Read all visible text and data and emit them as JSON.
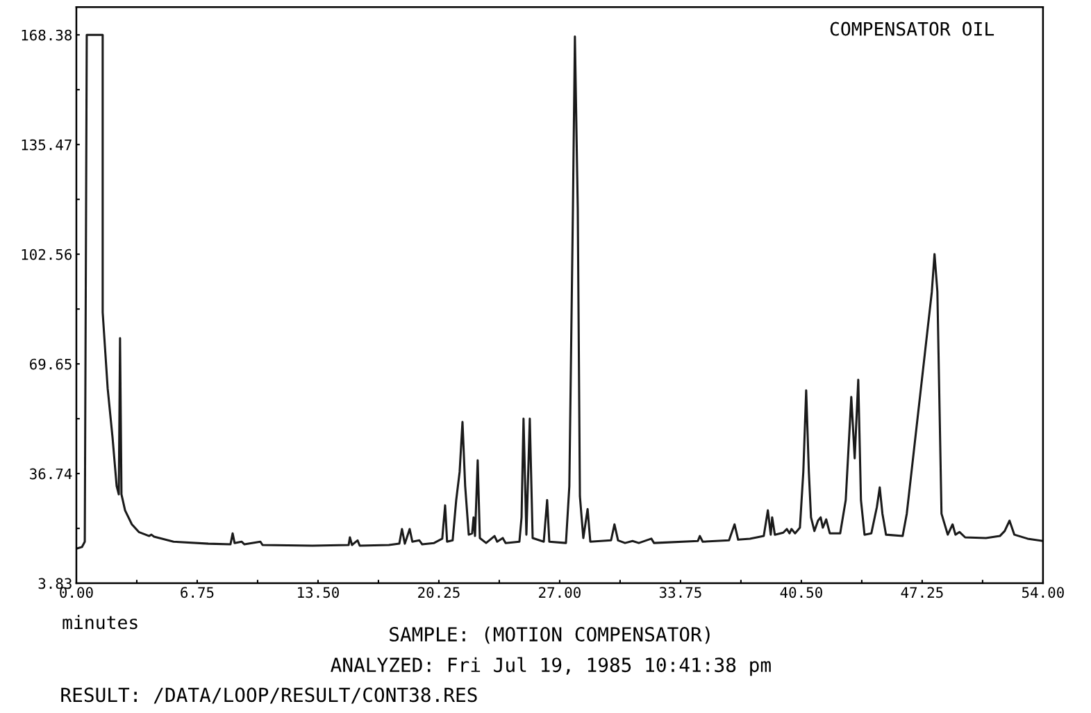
{
  "chart_data": {
    "type": "line",
    "title": "COMPENSATOR OIL",
    "xlabel": "minutes",
    "annotations": [
      "SAMPLE: (MOTION COMPENSATOR)",
      "ANALYZED: Fri Jul 19, 1985 10:41:38 pm",
      "RESULT: /DATA/LOOP/RESULT/CONT38.RES"
    ],
    "xlim": [
      0,
      54
    ],
    "xticks": [
      {
        "value": 0,
        "label": "0.00"
      },
      {
        "value": 3.375,
        "label": null
      },
      {
        "value": 6.75,
        "label": "6.75"
      },
      {
        "value": 10.125,
        "label": null
      },
      {
        "value": 13.5,
        "label": "13.50"
      },
      {
        "value": 16.875,
        "label": null
      },
      {
        "value": 20.25,
        "label": "20.25"
      },
      {
        "value": 23.625,
        "label": null
      },
      {
        "value": 27,
        "label": "27.00"
      },
      {
        "value": 30.375,
        "label": null
      },
      {
        "value": 33.75,
        "label": "33.75"
      },
      {
        "value": 37.125,
        "label": null
      },
      {
        "value": 40.5,
        "label": "40.50"
      },
      {
        "value": 43.875,
        "label": null
      },
      {
        "value": 47.25,
        "label": "47.25"
      },
      {
        "value": 50.625,
        "label": null
      },
      {
        "value": 54,
        "label": "54.00"
      }
    ],
    "ylim": [
      3.83,
      176.7
    ],
    "yticks": [
      3.83,
      {
        "value": 20.285,
        "label": null
      },
      36.74,
      {
        "value": 53.195,
        "label": null
      },
      69.65,
      {
        "value": 86.105,
        "label": null
      },
      102.56,
      {
        "value": 119.015,
        "label": null
      },
      135.47,
      {
        "value": 151.925,
        "label": null
      },
      168.38
    ],
    "grid": false,
    "legend": false,
    "marker": "none",
    "line_style": "solid",
    "series": [
      {
        "color": "#1a1a1a",
        "x": [
          0,
          0.31,
          0.47,
          0.58,
          1.47,
          1.47,
          1.75,
          2.02,
          2.25,
          2.37,
          2.44,
          2.52,
          2.72,
          3.1,
          3.49,
          4.07,
          4.19,
          4.34,
          5.43,
          7.37,
          8.61,
          8.73,
          8.84,
          9.23,
          9.39,
          10.28,
          10.4,
          13.19,
          15.21,
          15.28,
          15.4,
          15.71,
          15.83,
          17.46,
          18.04,
          18.19,
          18.35,
          18.62,
          18.77,
          19.16,
          19.32,
          19.98,
          20.44,
          20.6,
          20.71,
          21.02,
          21.22,
          21.41,
          21.57,
          21.72,
          21.92,
          22.11,
          22.19,
          22.27,
          22.42,
          22.54,
          22.89,
          23.36,
          23.51,
          23.82,
          23.98,
          24.75,
          24.87,
          24.98,
          25.14,
          25.33,
          25.49,
          26.11,
          26.3,
          26.42,
          27.35,
          27.54,
          27.74,
          27.85,
          28.01,
          28.13,
          28.32,
          28.56,
          28.71,
          29.87,
          30.06,
          30.26,
          30.65,
          31.07,
          31.42,
          32.12,
          32.27,
          34.72,
          34.83,
          34.99,
          36.46,
          36.77,
          36.97,
          37.63,
          38.4,
          38.63,
          38.79,
          38.87,
          39.02,
          39.49,
          39.69,
          39.84,
          39.95,
          40.15,
          40.42,
          40.61,
          40.77,
          40.92,
          41.04,
          41.23,
          41.43,
          41.58,
          41.7,
          41.89,
          42.09,
          42.67,
          42.98,
          43.29,
          43.48,
          43.68,
          43.83,
          44.03,
          44.41,
          44.72,
          44.88,
          45.03,
          45.23,
          46.16,
          46.39,
          47.79,
          47.94,
          48.1,
          48.33,
          48.68,
          48.95,
          49.11,
          49.34,
          49.65,
          50.81,
          51.59,
          51.86,
          52.13,
          52.4,
          53.14,
          54.0
        ],
        "values": [
          14.2,
          14.7,
          16.3,
          168.38,
          168.38,
          85.1,
          62.2,
          47.6,
          33.0,
          30.5,
          77.4,
          30.5,
          25.7,
          21.5,
          19.2,
          18.0,
          18.4,
          17.8,
          16.3,
          15.7,
          15.5,
          18.8,
          15.9,
          16.3,
          15.5,
          16.3,
          15.3,
          15.1,
          15.3,
          17.6,
          15.3,
          16.7,
          15.1,
          15.3,
          15.7,
          20.1,
          15.7,
          20.1,
          16.3,
          16.7,
          15.5,
          15.9,
          17.2,
          27.2,
          16.3,
          16.7,
          28.8,
          37.2,
          52.2,
          33.0,
          18.4,
          18.8,
          23.6,
          18.0,
          40.7,
          17.4,
          15.9,
          18.0,
          16.3,
          17.4,
          15.9,
          16.3,
          23.6,
          53.2,
          18.4,
          53.2,
          17.4,
          16.3,
          28.8,
          16.3,
          15.9,
          33.0,
          116.3,
          167.9,
          116.3,
          29.9,
          17.4,
          26.1,
          16.3,
          16.7,
          21.5,
          16.7,
          15.9,
          16.5,
          15.9,
          17.2,
          15.9,
          16.5,
          18.0,
          16.3,
          16.7,
          21.5,
          16.9,
          17.2,
          18.0,
          25.7,
          18.4,
          23.6,
          18.4,
          19.0,
          20.1,
          18.8,
          20.1,
          18.8,
          20.5,
          37.2,
          61.7,
          37.2,
          23.6,
          19.5,
          22.6,
          23.6,
          20.5,
          23.0,
          18.8,
          18.8,
          28.8,
          59.7,
          41.3,
          64.9,
          28.8,
          18.4,
          18.8,
          26.7,
          32.6,
          24.7,
          18.4,
          18.0,
          24.7,
          91.3,
          102.6,
          91.3,
          24.7,
          18.4,
          21.5,
          18.4,
          19.2,
          17.6,
          17.4,
          18.0,
          19.5,
          22.6,
          18.4,
          17.2,
          16.5
        ]
      }
    ]
  }
}
